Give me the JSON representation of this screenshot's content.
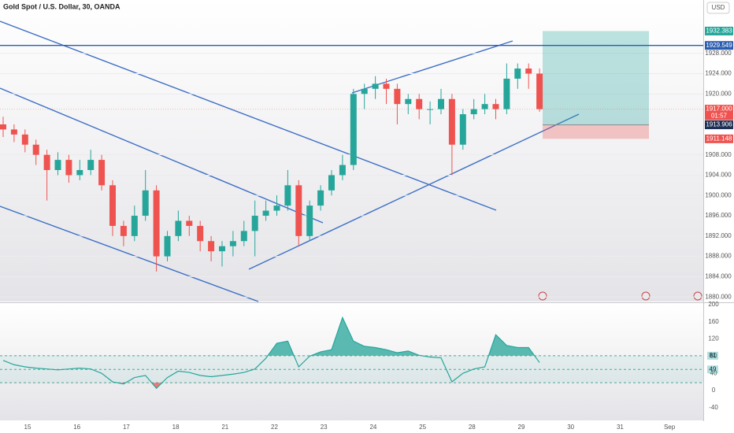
{
  "chart_data": {
    "type": "candlestick",
    "title": "Gold Spot / U.S. Dollar, 30, OANDA",
    "currency": "USD",
    "categories": [
      "15",
      "16",
      "17",
      "18",
      "21",
      "22",
      "23",
      "24",
      "25",
      "28",
      "29",
      "30",
      "31",
      "Sep"
    ],
    "open": [
      1914,
      1913,
      1912,
      1910,
      1908,
      1905,
      1907,
      1904,
      1905,
      1907,
      1902,
      1894,
      1892,
      1896,
      1901,
      1888,
      1892,
      1895,
      1894,
      1891,
      1889,
      1890,
      1891,
      1893,
      1896,
      1897,
      1898,
      1902,
      1892,
      1898,
      1901,
      1904,
      1906,
      1920,
      1921,
      1922,
      1921,
      1918,
      1919,
      1917,
      1917,
      1919,
      1910,
      1916,
      1917,
      1918,
      1917,
      1923,
      1925,
      1924
    ],
    "high": [
      1915.5,
      1914,
      1913,
      1911,
      1909,
      1908.5,
      1908,
      1907,
      1909,
      1908,
      1903,
      1895,
      1898,
      1905,
      1902,
      1893,
      1897,
      1896,
      1895,
      1892,
      1891,
      1893,
      1895,
      1899,
      1899,
      1900,
      1905,
      1903,
      1899,
      1902,
      1905,
      1908,
      1921,
      1922,
      1923.5,
      1923,
      1922,
      1920,
      1920,
      1918.5,
      1921,
      1920,
      1917,
      1919,
      1920,
      1919,
      1926,
      1926,
      1926,
      1925
    ],
    "low": [
      1911.5,
      1910.5,
      1908.5,
      1906,
      1899,
      1904,
      1902.5,
      1903,
      1904,
      1901,
      1892,
      1890,
      1891,
      1895,
      1885,
      1887,
      1891,
      1892,
      1889,
      1887,
      1886,
      1888,
      1890,
      1888,
      1895,
      1896,
      1897,
      1890,
      1891,
      1897,
      1900,
      1903,
      1905,
      1917,
      1919,
      1918,
      1914,
      1916,
      1915,
      1914,
      1916,
      1904,
      1909,
      1915,
      1916,
      1915,
      1916,
      1921,
      1921,
      1916.5
    ],
    "close": [
      1913,
      1912,
      1910,
      1908,
      1905,
      1907,
      1904,
      1905,
      1907,
      1902,
      1894,
      1892,
      1896,
      1901,
      1888,
      1892,
      1895,
      1894,
      1891,
      1889,
      1890,
      1891,
      1893,
      1896,
      1897,
      1898,
      1902,
      1892,
      1898,
      1901,
      1904,
      1906,
      1920,
      1921,
      1922,
      1921,
      1918,
      1919,
      1917,
      1917,
      1919,
      1910,
      1916,
      1917,
      1918,
      1917,
      1923,
      1925,
      1924,
      1917
    ],
    "up_color": "#26a69a",
    "down_color": "#ef5350",
    "ylim": [
      1879.1,
      1938.5
    ],
    "yticks": [
      {
        "value": 1880,
        "label": "1880.000"
      },
      {
        "value": 1884,
        "label": "1884.000"
      },
      {
        "value": 1888,
        "label": "1888.000"
      },
      {
        "value": 1892,
        "label": "1892.000"
      },
      {
        "value": 1896,
        "label": "1896.000"
      },
      {
        "value": 1900,
        "label": "1900.000"
      },
      {
        "value": 1904,
        "label": "1904.000"
      },
      {
        "value": 1908,
        "label": "1908.000"
      },
      {
        "value": 1920,
        "label": "1920.000"
      },
      {
        "value": 1924,
        "label": "1924.000"
      },
      {
        "value": 1928,
        "label": "1928.000"
      }
    ],
    "price_labels": [
      {
        "value": 1932.383,
        "label": "1932.383",
        "color": "#26a69a"
      },
      {
        "value": 1929.549,
        "label": "1929.549",
        "color": "#2a5db0"
      },
      {
        "value": 1917,
        "label": "1917.000",
        "color": "#ef5350"
      },
      {
        "value": 1913.906,
        "label": "1913.906",
        "color": "#1e2f55"
      },
      {
        "value": 1911.148,
        "label": "1911.148",
        "color": "#ef5350"
      }
    ],
    "countdown": "01:57",
    "indicator": {
      "values": [
        70,
        60,
        55,
        52,
        50,
        48,
        50,
        52,
        50,
        40,
        20,
        15,
        30,
        35,
        5,
        30,
        45,
        42,
        35,
        32,
        35,
        38,
        42,
        50,
        75,
        110,
        115,
        55,
        80,
        90,
        95,
        170,
        115,
        103,
        100,
        95,
        88,
        92,
        82,
        78,
        76,
        20,
        40,
        50,
        55,
        130,
        105,
        100,
        100,
        65
      ],
      "color": "#26a69a",
      "ylim": [
        -70,
        202
      ],
      "yticks": [
        -40,
        0,
        40,
        80,
        120,
        160,
        200
      ],
      "levels": [
        {
          "value": 81,
          "label": "81"
        },
        {
          "value": 49,
          "label": "49"
        },
        {
          "value": 18
        }
      ]
    }
  }
}
